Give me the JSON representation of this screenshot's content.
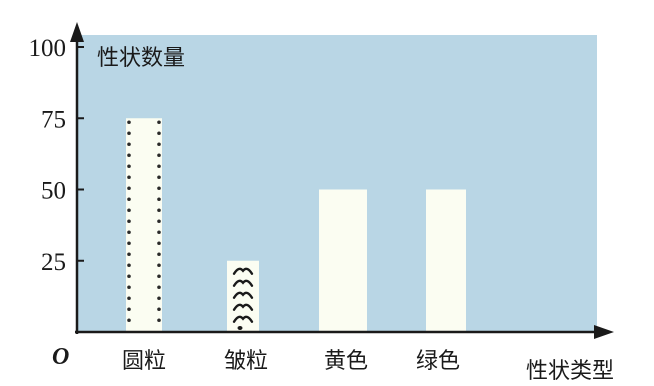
{
  "chart_data": {
    "type": "bar",
    "categories": [
      "圆粒",
      "皱粒",
      "黄色",
      "绿色"
    ],
    "values": [
      75,
      25,
      50,
      50
    ],
    "ylabel": "性状数量",
    "xlabel": "性状类型",
    "origin_label": "O",
    "ylim": [
      0,
      100
    ],
    "yticks": [
      25,
      50,
      75,
      100
    ],
    "colors": {
      "plot_background": "#b9d6e5",
      "bar": "#fbfdf2",
      "axis": "#1a1a1a"
    }
  }
}
